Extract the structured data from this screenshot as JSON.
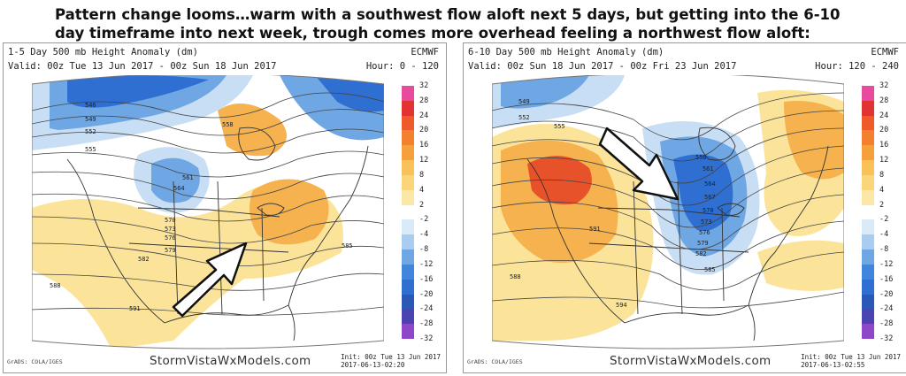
{
  "headline": "Pattern change looms…warm with a southwest flow aloft next 5 days, but getting into the 6-10 day timeframe into next week, trough comes more overhead feeling a northwest flow aloft:",
  "colors": {
    "deep_blue": "#2f6fd1",
    "mid_blue": "#6fa6e4",
    "light_blue": "#c8def4",
    "light_yellow": "#fbe49a",
    "orange": "#f6b24e",
    "deep_orange": "#ef7b2e",
    "red": "#e8522b"
  },
  "colorbar": {
    "labels": [
      "32",
      "28",
      "24",
      "20",
      "16",
      "12",
      "8",
      "4",
      "2",
      "-2",
      "-4",
      "-8",
      "-12",
      "-16",
      "-20",
      "-24",
      "-28",
      "-32"
    ],
    "colors": [
      "#e84a9e",
      "#e23232",
      "#ee5a2a",
      "#f47f2e",
      "#f6a03c",
      "#f8c15a",
      "#fad57a",
      "#fbe7a6",
      "#ffffff",
      "#d9ebf8",
      "#a9cdf0",
      "#6fa6e4",
      "#3f86dc",
      "#2f6fd1",
      "#2a58b6",
      "#4a44b2",
      "#8f47c9"
    ]
  },
  "panels": [
    {
      "title_line1": "1-5 Day 500 mb Height Anomaly (dm)",
      "title_line2": "Valid: 00z Tue 13 Jun 2017 - 00z Sun 18 Jun 2017",
      "model": "ECMWF",
      "hour": "Hour: 0 - 120",
      "footer": "StormVistaWxModels.com",
      "grads": "GrADS: COLA/IGES",
      "init_line1": "Init: 00z Tue 13 Jun 2017",
      "init_line2": "2017-06-13-02:20",
      "contour_labels": [
        "546",
        "549",
        "552",
        "555",
        "558",
        "561",
        "564",
        "570",
        "573",
        "576",
        "579",
        "582",
        "585",
        "588",
        "591"
      ]
    },
    {
      "title_line1": "6-10 Day 500 mb Height Anomaly (dm)",
      "title_line2": "Valid: 00z Sun 18 Jun 2017 - 00z Fri 23 Jun 2017",
      "model": "ECMWF",
      "hour": "Hour: 120 - 240",
      "footer": "StormVistaWxModels.com",
      "grads": "GrADS: COLA/IGES",
      "init_line1": "Init: 00z Tue 13 Jun 2017",
      "init_line2": "2017-06-13-02:55",
      "contour_labels": [
        "549",
        "552",
        "555",
        "558",
        "561",
        "564",
        "567",
        "570",
        "573",
        "576",
        "579",
        "582",
        "585",
        "588",
        "591",
        "594"
      ]
    }
  ]
}
